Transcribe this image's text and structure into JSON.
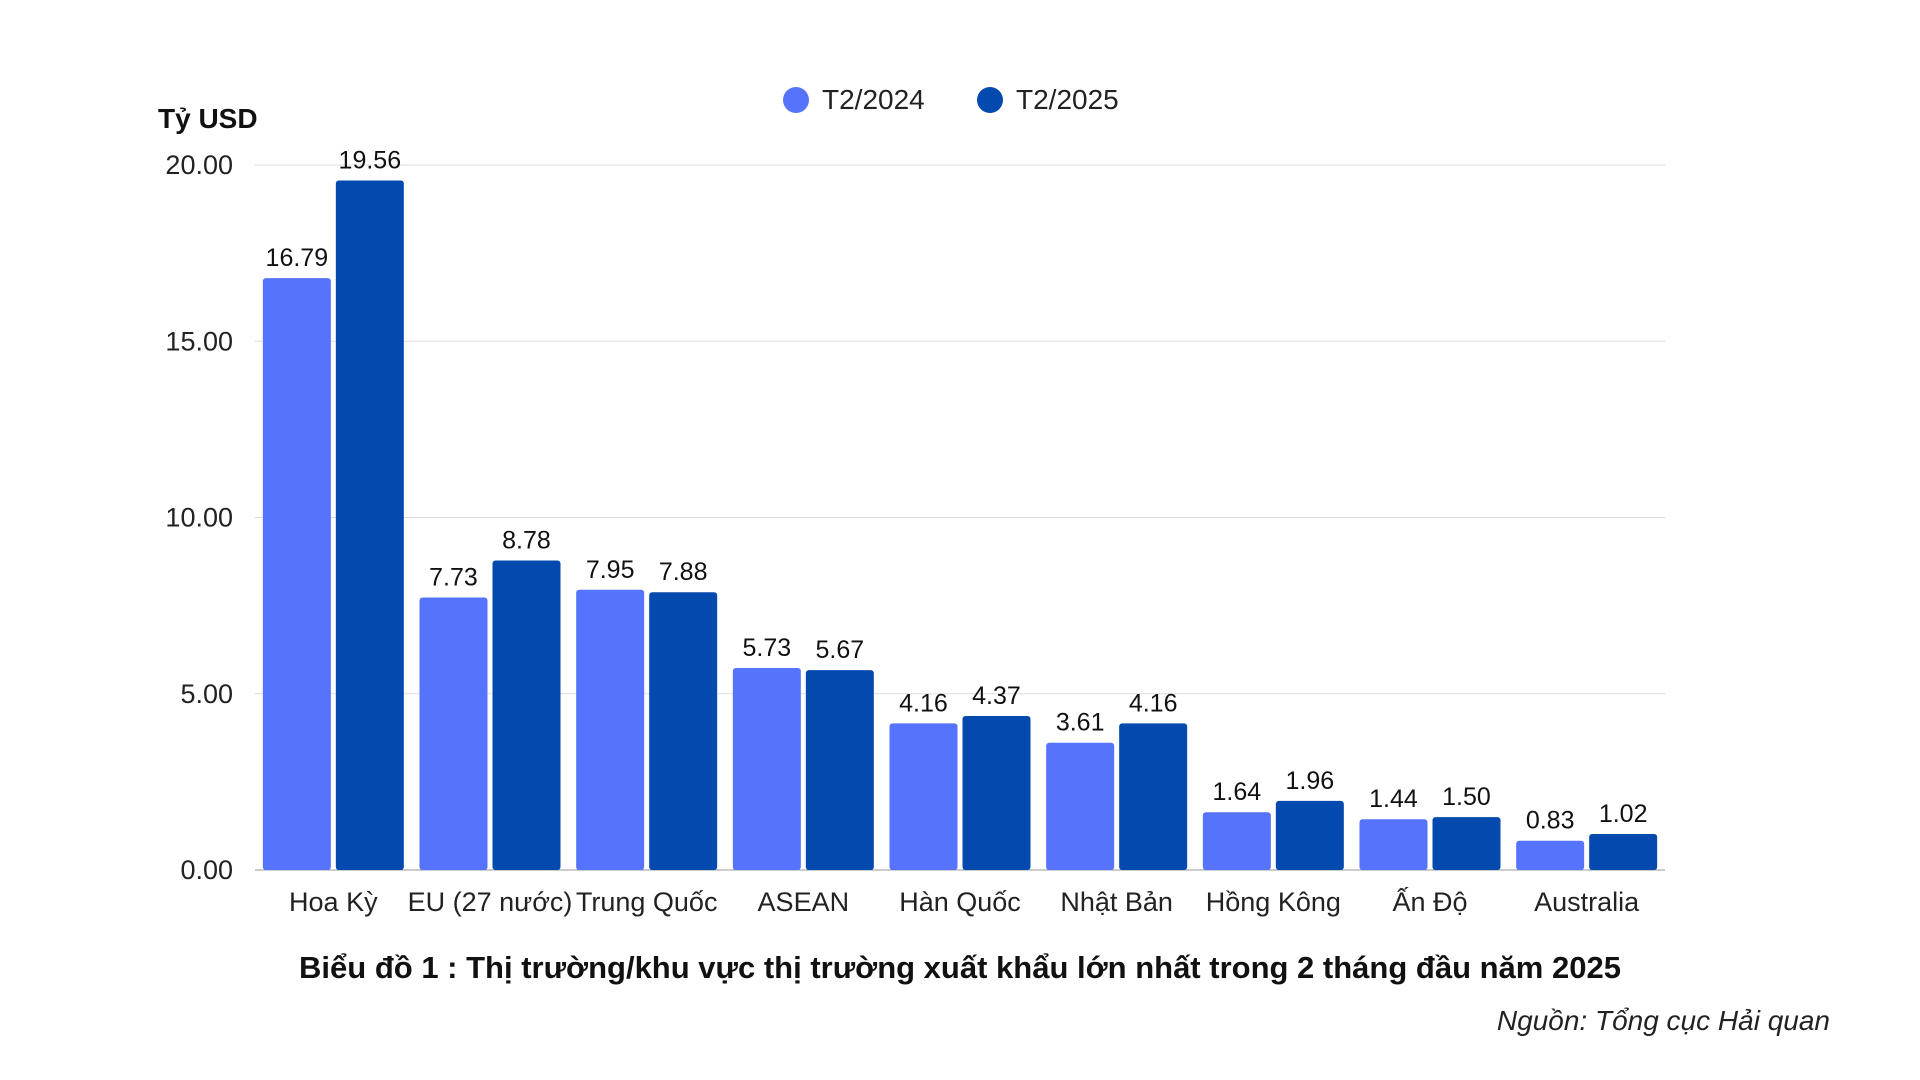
{
  "colors": {
    "T2/2024": "#5673fb",
    "T2/2025": "#0349ae",
    "grid": "#dddddd",
    "axis": "#999999"
  },
  "caption": "Biểu đồ 1 : Thị trường/khu vực thị trường xuất khẩu lớn nhất trong 2 tháng đầu năm 2025",
  "source": "Nguồn: Tổng cục Hải quan",
  "chart_data": {
    "type": "bar",
    "title": "",
    "ylabel": "Tỷ USD",
    "xlabel": "",
    "ylim": [
      0,
      20
    ],
    "yticks": [
      "0.00",
      "5.00",
      "10.00",
      "15.00",
      "20.00"
    ],
    "ytick_values": [
      0,
      5,
      10,
      15,
      20
    ],
    "grid": true,
    "legend_position": "top-center",
    "categories": [
      "Hoa Kỳ",
      "EU (27 nước)",
      "Trung Quốc",
      "ASEAN",
      "Hàn Quốc",
      "Nhật Bản",
      "Hồng Kông",
      "Ấn Độ",
      "Australia"
    ],
    "series": [
      {
        "name": "T2/2024",
        "values": [
          16.79,
          7.73,
          7.95,
          5.73,
          4.16,
          3.61,
          1.64,
          1.44,
          0.83
        ]
      },
      {
        "name": "T2/2025",
        "values": [
          19.56,
          8.78,
          7.88,
          5.67,
          4.37,
          4.16,
          1.96,
          1.5,
          1.02
        ]
      }
    ]
  }
}
